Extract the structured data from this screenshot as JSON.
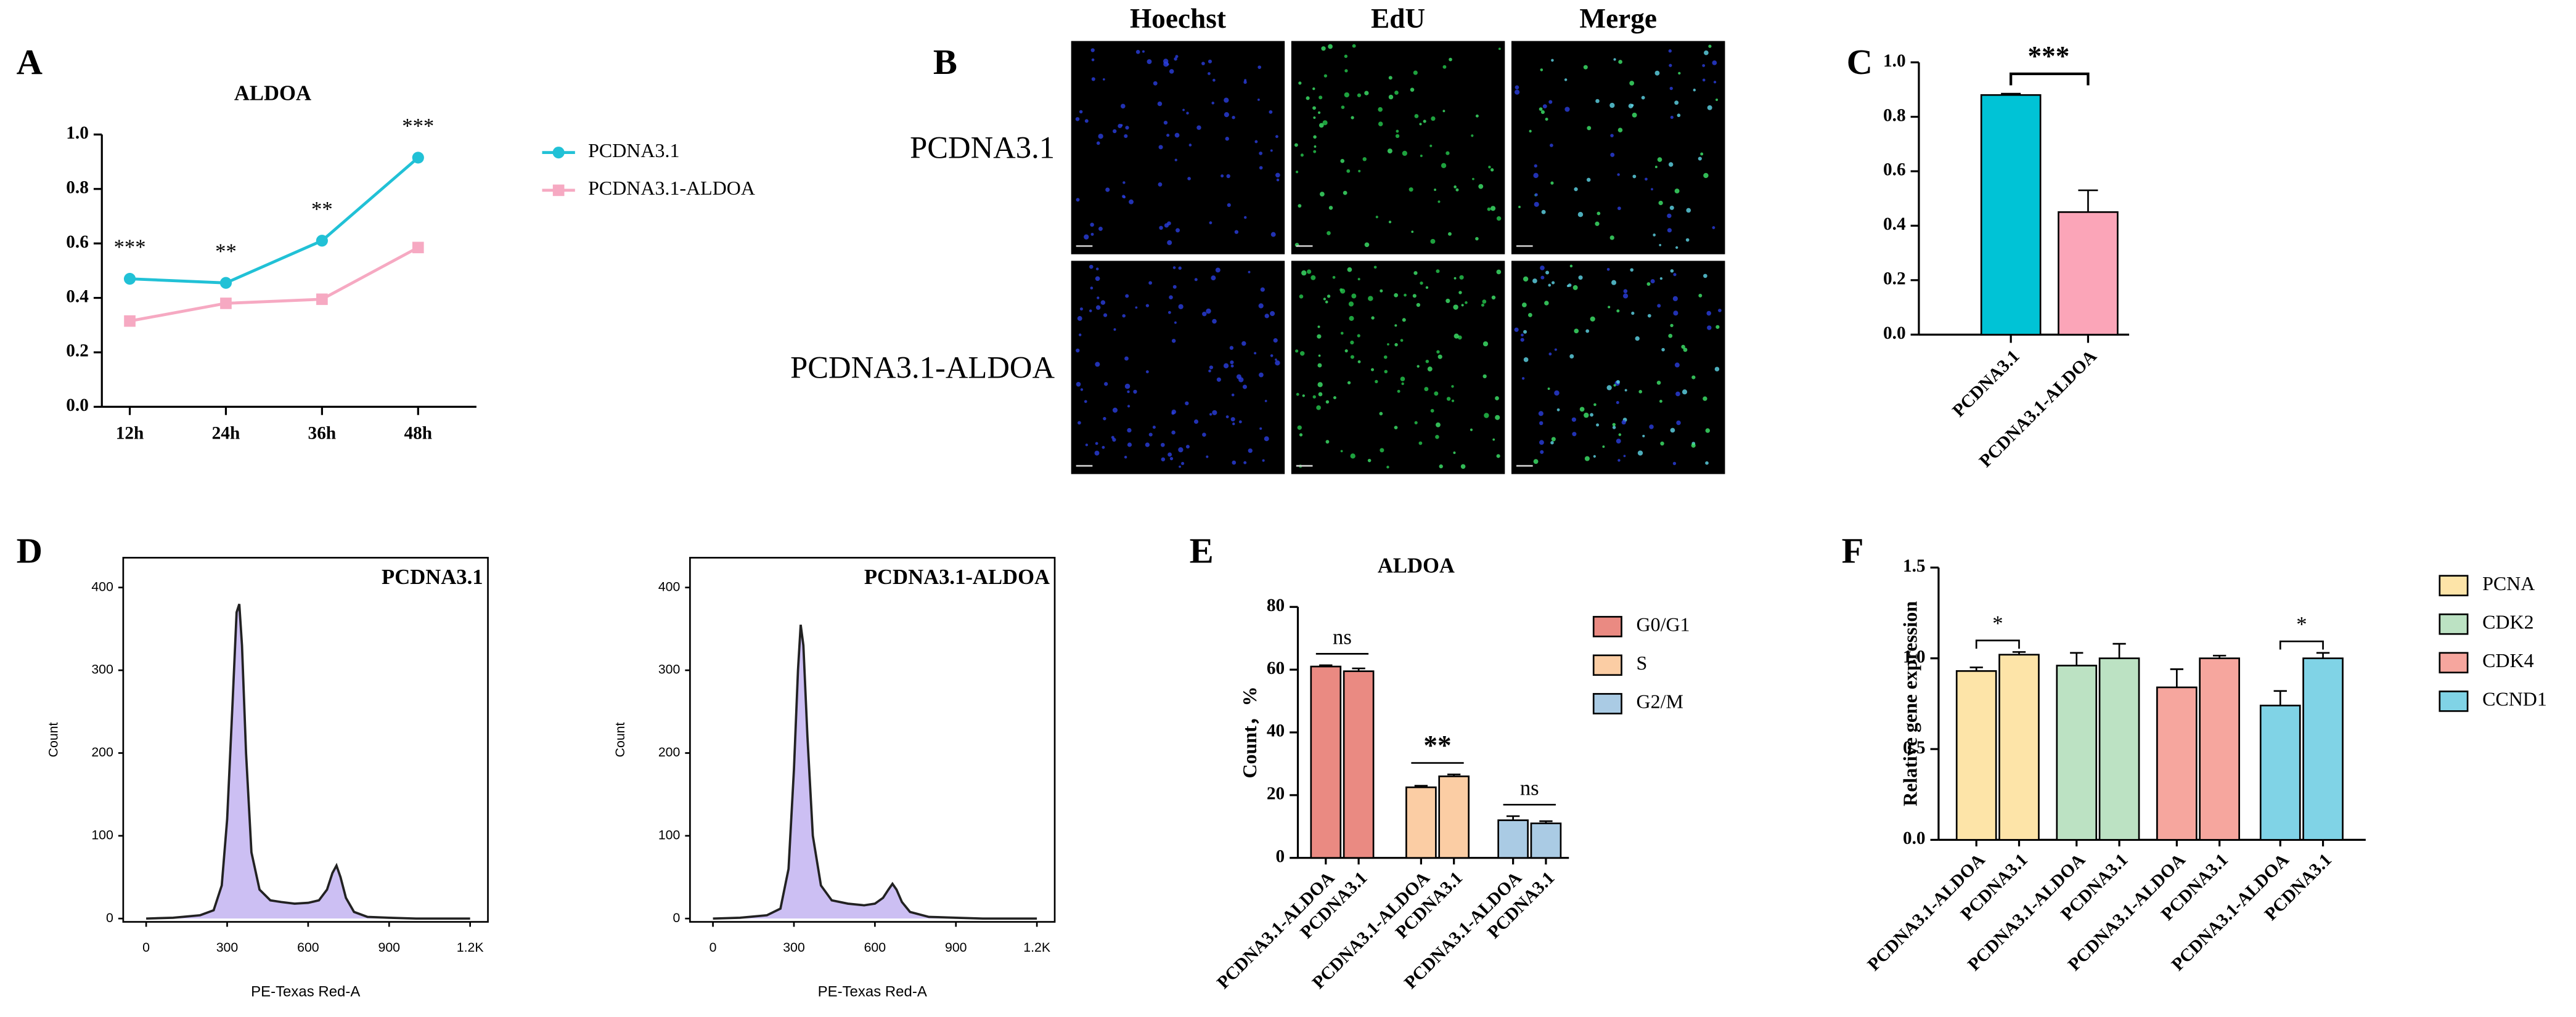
{
  "chart_data": [
    {
      "type": "line",
      "panel": "A",
      "title": "ALDOA",
      "categories": [
        "12h",
        "24h",
        "36h",
        "48h"
      ],
      "series": [
        {
          "name": "PCDNA3.1",
          "color": "#21c1d6",
          "values": [
            0.47,
            0.455,
            0.61,
            0.915
          ]
        },
        {
          "name": "PCDNA3.1-ALDOA",
          "color": "#f6a9c2",
          "values": [
            0.315,
            0.38,
            0.395,
            0.585
          ]
        }
      ],
      "annotations": [
        "***",
        "**",
        "**",
        "***"
      ],
      "ylim": [
        0,
        1
      ],
      "yticks": [
        {
          "value": 0,
          "label": "0.0"
        },
        0.2,
        0.4,
        0.6,
        0.8,
        {
          "value": 1,
          "label": "1.0"
        }
      ]
    },
    {
      "type": "image-grid",
      "panel": "B",
      "columns": [
        "Hoechst",
        "EdU",
        "Merge"
      ],
      "rows": [
        "PCDNA3.1",
        "PCDNA3.1-ALDOA"
      ]
    },
    {
      "type": "bar",
      "panel": "C",
      "categories": [
        "PCDNA3.1",
        "PCDNA3.1-ALDOA"
      ],
      "values": [
        0.88,
        0.45
      ],
      "errors": [
        0.005,
        0.08
      ],
      "colors": [
        "#00c3d6",
        "#fba5b8"
      ],
      "annotations": [
        "***"
      ],
      "ylim": [
        0,
        1
      ],
      "yticks": [
        {
          "value": 0,
          "label": "0.0"
        },
        0.2,
        0.4,
        0.6,
        0.8,
        {
          "value": 1,
          "label": "1.0"
        }
      ]
    },
    {
      "type": "flow",
      "panel": "D",
      "title": "PCDNA3.1",
      "x_label": "PE-Texas Red-A",
      "y_label": "Count",
      "color": "#222222",
      "x": [
        0,
        100,
        200,
        250,
        280,
        300,
        320,
        335,
        345,
        355,
        370,
        390,
        420,
        460,
        500,
        550,
        600,
        640,
        670,
        690,
        705,
        720,
        740,
        770,
        820,
        900,
        1000,
        1200
      ],
      "values": [
        0,
        1,
        4,
        10,
        40,
        120,
        260,
        370,
        380,
        330,
        200,
        80,
        35,
        22,
        20,
        18,
        19,
        22,
        35,
        55,
        64,
        50,
        25,
        8,
        2,
        1,
        0,
        0
      ],
      "xlim": [
        -85,
        1266
      ],
      "xticks": [
        0,
        300,
        600,
        900,
        {
          "value": 1200,
          "label": "1.2K"
        }
      ],
      "ylim": [
        -4,
        436
      ],
      "yticks": [
        0,
        100,
        200,
        300,
        400
      ]
    },
    {
      "type": "flow",
      "title": "PCDNA3.1-ALDOA",
      "x_label": "PE-Texas Red-A",
      "y_label": "Count",
      "color": "#222222",
      "x": [
        0,
        100,
        200,
        250,
        280,
        300,
        315,
        325,
        335,
        350,
        370,
        400,
        440,
        500,
        560,
        600,
        630,
        650,
        665,
        680,
        700,
        730,
        800,
        900,
        1000,
        1200
      ],
      "values": [
        0,
        1,
        4,
        12,
        60,
        180,
        300,
        355,
        330,
        220,
        100,
        40,
        22,
        18,
        16,
        18,
        25,
        35,
        42,
        35,
        20,
        8,
        2,
        1,
        0,
        0
      ],
      "xlim": [
        -85,
        1266
      ],
      "xticks": [
        0,
        300,
        600,
        900,
        {
          "value": 1200,
          "label": "1.2K"
        }
      ],
      "ylim": [
        -4,
        436
      ],
      "yticks": [
        0,
        100,
        200,
        300,
        400
      ]
    },
    {
      "type": "grouped-bar",
      "panel": "E",
      "title": "ALDOA",
      "y_label": "Count，%",
      "categories": [
        "PCDNA3.1-ALDOA",
        "PCDNA3.1"
      ],
      "series": [
        {
          "name": "G0/G1",
          "color": "#ea8a82",
          "values": [
            61,
            59.5
          ],
          "errors": [
            0.4,
            0.9
          ]
        },
        {
          "name": "S",
          "color": "#fbcda4",
          "values": [
            22.5,
            26
          ],
          "errors": [
            0.5,
            0.6
          ]
        },
        {
          "name": "G2/M",
          "color": "#aacbe4",
          "values": [
            12,
            11
          ],
          "errors": [
            1.3,
            0.7
          ]
        }
      ],
      "annotations": [
        "ns",
        "**",
        "ns"
      ],
      "ylim": [
        0,
        80
      ],
      "yticks": [
        0,
        20,
        40,
        60,
        80
      ]
    },
    {
      "type": "grouped-bar",
      "panel": "F",
      "y_label": "Relative gene expression",
      "categories": [
        "PCDNA3.1-ALDOA",
        "PCDNA3.1"
      ],
      "series": [
        {
          "name": "PCNA",
          "color": "#fde4a8",
          "values": [
            0.93,
            1.02
          ],
          "errors": [
            0.02,
            0.015
          ]
        },
        {
          "name": "CDK2",
          "color": "#bce2c3",
          "values": [
            0.96,
            1.0
          ],
          "errors": [
            0.07,
            0.08
          ]
        },
        {
          "name": "CDK4",
          "color": "#f6a69e",
          "values": [
            0.84,
            1.0
          ],
          "errors": [
            0.1,
            0.015
          ]
        },
        {
          "name": "CCND1",
          "color": "#80d3e6",
          "values": [
            0.74,
            1.0
          ],
          "errors": [
            0.08,
            0.03
          ]
        }
      ],
      "annotations": [
        "*",
        "*"
      ],
      "ylim": [
        0,
        1.5
      ],
      "yticks": [
        {
          "value": 0,
          "label": "0.0"
        },
        0.5,
        {
          "value": 1,
          "label": "1.0"
        },
        1.5
      ]
    }
  ]
}
